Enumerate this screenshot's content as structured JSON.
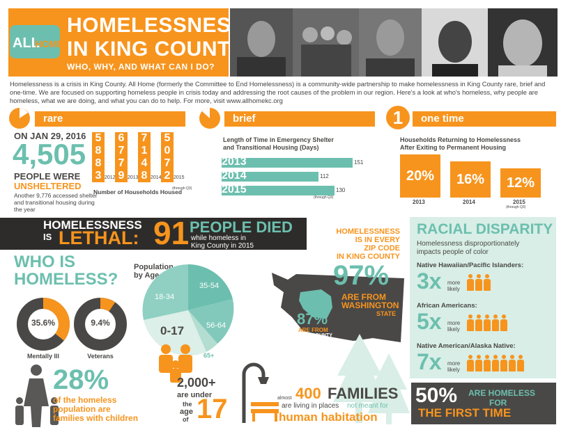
{
  "header": {
    "logo_text": "ALLHOME",
    "title_line1": "HOMELESSNESS",
    "title_line2": "IN KING COUNTY:",
    "subtitle": "WHO, WHY, AND WHAT CAN I DO?"
  },
  "intro": "Homelessness is a crisis in King County. All Home (formerly the Committee to End Homelessness) is a community-wide partnership to make homelessness in King County rare, brief and one-time. We are focused on supporting homeless people in crisis today and addressing the root causes of the problem in our region. Here's a look at who's homeless, why people are homeless, what we are doing, and what you can do to help. For more, visit www.allhomekc.org",
  "rare": {
    "label": "rare",
    "date": "ON JAN 29, 2016",
    "count": "4,505",
    "line1": "PEOPLE WERE",
    "line2": "UNSHELTERED",
    "note": "Another 9,776 accessed shelter and transitional housing during the year",
    "households_caption": "Number of Households Housed",
    "years": [
      {
        "digits": "5883",
        "year": "2012"
      },
      {
        "digits": "6779",
        "year": "2013"
      },
      {
        "digits": "7148",
        "year": "2014"
      },
      {
        "digits": "5072",
        "year": "2015",
        "note": "(through Q3)"
      }
    ]
  },
  "brief": {
    "label": "brief",
    "caption_line1": "Length of Time in Emergency Shelter",
    "caption_line2": "and Transitional Housing (Days)",
    "bars": [
      {
        "year": "2013",
        "value": 151,
        "label": "151"
      },
      {
        "year": "2014",
        "value": 112,
        "label": "112"
      },
      {
        "year": "2015",
        "value": 130,
        "label": "130",
        "note": "(through Q3)"
      }
    ]
  },
  "onetime": {
    "badge": "1",
    "label": "one time",
    "caption_line1": "Households Returning to Homelessness",
    "caption_line2": "After Exiting to Permanent Housing",
    "items": [
      {
        "pct": "20%",
        "year": "2013"
      },
      {
        "pct": "16%",
        "year": "2014"
      },
      {
        "pct": "12%",
        "year": "2015",
        "note": "(through Q3)"
      }
    ]
  },
  "lethal": {
    "line1": "HOMELESSNESS",
    "is": "IS",
    "lethal": "LETHAL:",
    "number": "91",
    "died": "PEOPLE DIED",
    "sub1": "while homeless in",
    "sub2": "King County in 2015"
  },
  "zip": {
    "line1": "HOMELESSNESS",
    "line2": "IS IN EVERY",
    "line3": "ZIP CODE",
    "line4": "IN KING COUNTY",
    "pct_wa": "97%",
    "wa_line1": "ARE FROM",
    "wa_line2": "WASHINGTON",
    "wa_line3": "STATE",
    "pct_kc": "87%",
    "kc_line1": "ARE FROM",
    "kc_line2": "KING COUNTY"
  },
  "who": {
    "title_line1": "WHO IS",
    "title_line2": "HOMELESS?",
    "donuts": [
      {
        "pct": "35.6%",
        "value": 35.6,
        "label": "Mentally Ill"
      },
      {
        "pct": "9.4%",
        "value": 9.4,
        "label": "Veterans"
      }
    ],
    "families_pct": "28%",
    "families_line1": "of the homeless",
    "families_line2": "population are",
    "families_line3": "families with children"
  },
  "age": {
    "title_line1": "Population",
    "title_line2": "by Age",
    "slices": [
      {
        "label": "35-54"
      },
      {
        "label": "56-64"
      },
      {
        "label": "65+"
      },
      {
        "label": "0-17"
      },
      {
        "label": "18-34"
      }
    ],
    "under_count": "2,000+",
    "under_line1": "are under",
    "under_line2": "the",
    "under_line3": "age",
    "under_line4": "of",
    "under_age": "17"
  },
  "families": {
    "almost": "almost",
    "count": "400",
    "families": "FAMILIES",
    "line1": "are living in places",
    "line2": "not meant for",
    "line3": "human habitation"
  },
  "racial": {
    "title": "RACIAL DISPARITY",
    "sub1": "Homelessness disproportionately",
    "sub2": "impacts people of color",
    "groups": [
      {
        "name": "Native Hawaiian/Pacific Islanders:",
        "mult": "3x",
        "more": "more",
        "likely": "likely",
        "count": 3
      },
      {
        "name": "African Americans:",
        "mult": "5x",
        "more": "more",
        "likely": "likely",
        "count": 5
      },
      {
        "name": "Native American/Alaska Native:",
        "mult": "7x",
        "more": "more",
        "likely": "likely",
        "count": 7
      }
    ]
  },
  "first": {
    "pct": "50%",
    "line1": "ARE HOMELESS",
    "line2": "FOR",
    "line3": "THE FIRST TIME"
  },
  "colors": {
    "orange": "#f7941d",
    "teal": "#6cbfae",
    "dark": "#4a4846"
  }
}
